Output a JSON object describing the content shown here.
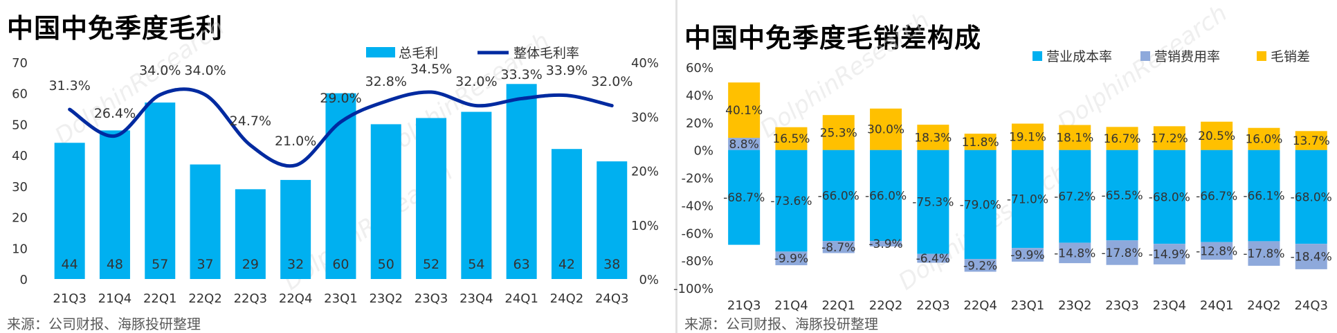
{
  "source_text": "来源：公司财报、海豚投研整理",
  "colors": {
    "bar_blue": "#00B0F0",
    "line_navy": "#002AA0",
    "sales_cost": "#8EA9DB",
    "margin": "#FFC000"
  },
  "charts": [
    {
      "title": "中国中免季度毛利",
      "chart_data": {
        "type": "bar",
        "categories": [
          "21Q3",
          "21Q4",
          "22Q1",
          "22Q2",
          "22Q3",
          "22Q4",
          "23Q1",
          "23Q2",
          "23Q3",
          "23Q4",
          "24Q1",
          "24Q2",
          "24Q3"
        ],
        "series": [
          {
            "name": "总毛利",
            "type": "bar",
            "axis": "left",
            "color": "#00B0F0",
            "values": [
              44,
              48,
              57,
              37,
              29,
              32,
              60,
              50,
              52,
              54,
              63,
              42,
              38
            ],
            "labels": [
              "44",
              "48",
              "57",
              "37",
              "29",
              "32",
              "60",
              "50",
              "52",
              "54",
              "63",
              "42",
              "38"
            ]
          },
          {
            "name": "整体毛利率",
            "type": "line",
            "axis": "right",
            "color": "#002AA0",
            "values": [
              31.3,
              26.4,
              34.0,
              34.0,
              24.7,
              21.0,
              29.0,
              32.8,
              34.5,
              32.0,
              33.3,
              33.9,
              32.0
            ],
            "labels": [
              "31.3%",
              "26.4%",
              "34.0%",
              "34.0%",
              "24.7%",
              "21.0%",
              "29.0%",
              "32.8%",
              "34.5%",
              "32.0%",
              "33.3%",
              "33.9%",
              "32.0%"
            ]
          }
        ],
        "left_axis": {
          "min": 0,
          "max": 70,
          "ticks": [
            "0",
            "10",
            "20",
            "30",
            "40",
            "50",
            "60",
            "70"
          ]
        },
        "right_axis": {
          "min": 0,
          "max": 40,
          "ticks": [
            "0%",
            "10%",
            "20%",
            "30%",
            "40%"
          ]
        },
        "legend_position": "top-right",
        "grid": false
      }
    },
    {
      "title": "中国中免季度毛销差构成",
      "chart_data": {
        "type": "bar",
        "stacked": true,
        "categories": [
          "21Q3",
          "21Q4",
          "22Q1",
          "22Q2",
          "22Q3",
          "22Q4",
          "23Q1",
          "23Q2",
          "23Q3",
          "23Q4",
          "24Q1",
          "24Q2",
          "24Q3"
        ],
        "series": [
          {
            "name": "营业成本率",
            "color": "#00B0F0",
            "values": [
              -68.7,
              -73.6,
              -66.0,
              -66.0,
              -75.3,
              -79.0,
              -71.0,
              -67.2,
              -65.5,
              -68.0,
              -66.7,
              -66.1,
              -68.0
            ],
            "labels": [
              "-68.7%",
              "-73.6%",
              "-66.0%",
              "-66.0%",
              "-75.3%",
              "-79.0%",
              "-71.0%",
              "-67.2%",
              "-65.5%",
              "-68.0%",
              "-66.7%",
              "-66.1%",
              "-68.0%"
            ]
          },
          {
            "name": "营销费用率",
            "color": "#8EA9DB",
            "values": [
              8.8,
              -9.9,
              -8.7,
              -3.9,
              -6.4,
              -9.2,
              -9.9,
              -14.8,
              -17.8,
              -14.9,
              -12.8,
              -17.8,
              -18.4
            ],
            "labels": [
              "8.8%",
              "-9.9%",
              "-8.7%",
              "-3.9%",
              "-6.4%",
              "-9.2%",
              "-9.9%",
              "-14.8%",
              "-17.8%",
              "-14.9%",
              "-12.8%",
              "-17.8%",
              "-18.4%"
            ]
          },
          {
            "name": "毛销差",
            "color": "#FFC000",
            "values": [
              40.1,
              16.5,
              25.3,
              30.0,
              18.3,
              11.8,
              19.1,
              18.1,
              16.7,
              17.2,
              20.5,
              16.0,
              13.7
            ],
            "labels": [
              "40.1%",
              "16.5%",
              "25.3%",
              "30.0%",
              "18.3%",
              "11.8%",
              "19.1%",
              "18.1%",
              "16.7%",
              "17.2%",
              "20.5%",
              "16.0%",
              "13.7%"
            ]
          }
        ],
        "y_axis": {
          "min": -100,
          "max": 60,
          "ticks": [
            "-100%",
            "-80%",
            "-60%",
            "-40%",
            "-20%",
            "0%",
            "20%",
            "40%",
            "60%"
          ]
        },
        "legend_position": "top-right",
        "grid": false
      }
    }
  ]
}
